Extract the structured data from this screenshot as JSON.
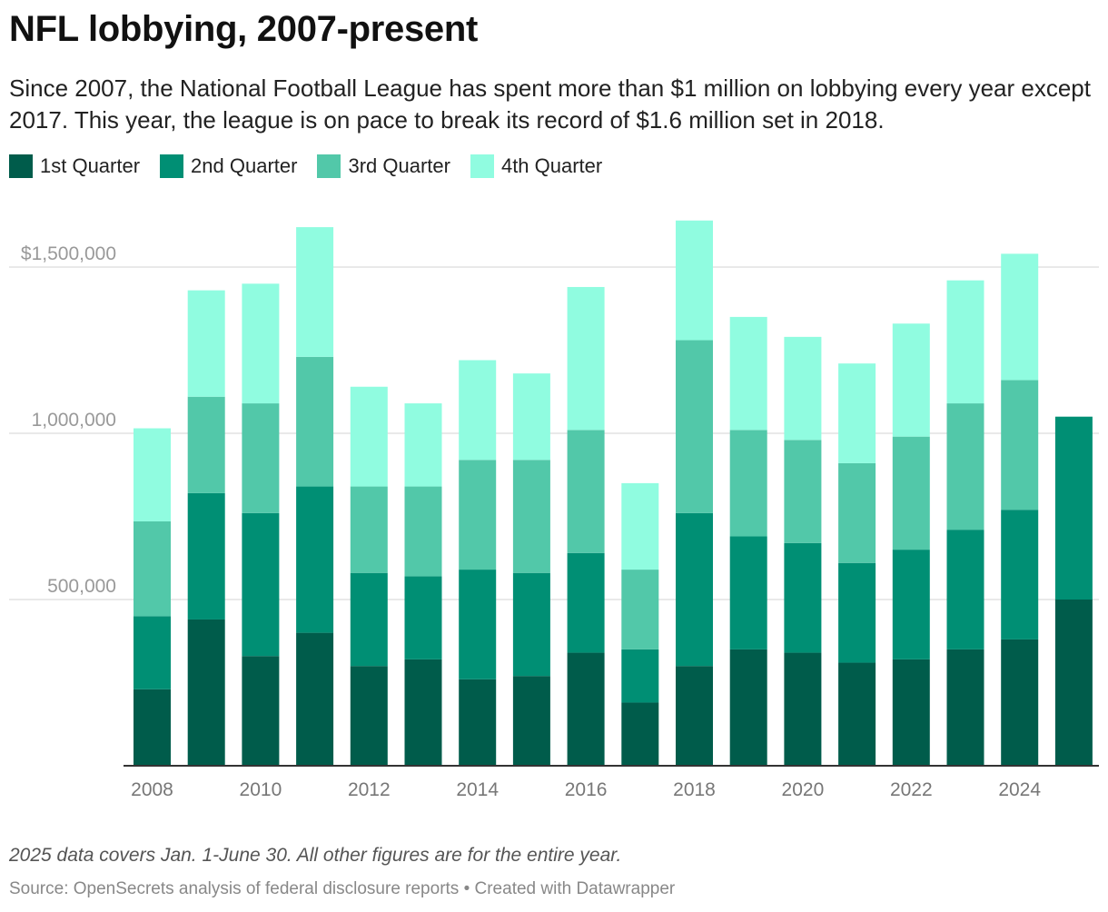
{
  "header": {
    "title": "NFL lobbying, 2007-present",
    "subtitle": "Since 2007, the National Football League has spent more than $1 million on lobbying every year except 2017. This year, the league is on pace to break its record of $1.6 million set in 2018."
  },
  "footer": {
    "note": "2025 data covers Jan. 1-June 30. All other figures are for the entire year.",
    "source": "Source: OpenSecrets analysis of federal disclosure reports • Created with Datawrapper"
  },
  "chart_data": {
    "type": "bar",
    "stacked": true,
    "categories": [
      "2008",
      "2009",
      "2010",
      "2011",
      "2012",
      "2013",
      "2014",
      "2015",
      "2016",
      "2017",
      "2018",
      "2019",
      "2020",
      "2021",
      "2022",
      "2023",
      "2024",
      "2025"
    ],
    "x_tick_labels": [
      "2008",
      "2010",
      "2012",
      "2014",
      "2016",
      "2018",
      "2020",
      "2022",
      "2024"
    ],
    "y_ticks": [
      500000,
      1000000,
      1500000
    ],
    "y_tick_labels": [
      "500,000",
      "1,000,000",
      "$1,500,000"
    ],
    "ylim": [
      0,
      1650000
    ],
    "grid": true,
    "legend_position": "top-left",
    "series": [
      {
        "name": "1st Quarter",
        "color": "#005c4b",
        "values": [
          230000,
          440000,
          330000,
          400000,
          300000,
          320000,
          260000,
          270000,
          340000,
          190000,
          300000,
          350000,
          340000,
          310000,
          320000,
          350000,
          380000,
          500000
        ]
      },
      {
        "name": "2nd Quarter",
        "color": "#008f74",
        "values": [
          220000,
          380000,
          430000,
          440000,
          280000,
          250000,
          330000,
          310000,
          300000,
          160000,
          460000,
          340000,
          330000,
          300000,
          330000,
          360000,
          390000,
          550000
        ]
      },
      {
        "name": "3rd Quarter",
        "color": "#52c8a9",
        "values": [
          285000,
          290000,
          330000,
          390000,
          260000,
          270000,
          330000,
          340000,
          370000,
          240000,
          520000,
          320000,
          310000,
          300000,
          340000,
          380000,
          390000,
          0
        ]
      },
      {
        "name": "4th Quarter",
        "color": "#90fce0",
        "values": [
          280000,
          320000,
          360000,
          390000,
          300000,
          250000,
          300000,
          260000,
          430000,
          260000,
          360000,
          340000,
          310000,
          300000,
          340000,
          370000,
          380000,
          0
        ]
      }
    ]
  }
}
